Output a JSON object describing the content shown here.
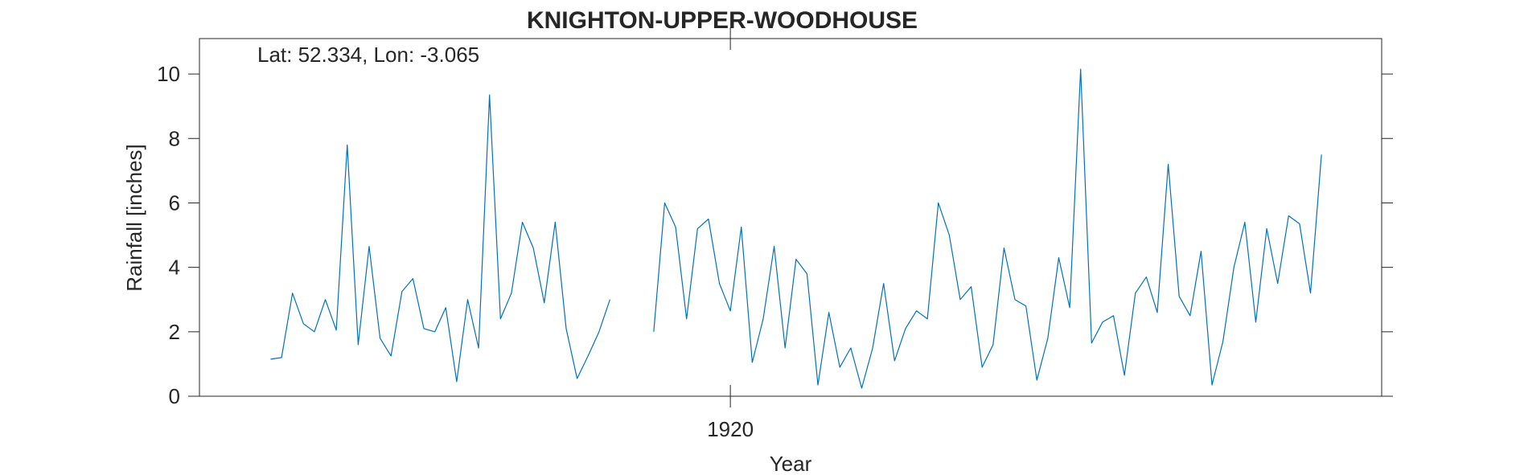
{
  "chart_data": {
    "type": "line",
    "title": "KNIGHTON-UPPER-WOODHOUSE",
    "annotation": "Lat: 52.334, Lon: -3.065",
    "xlabel": "Year",
    "ylabel": "Rainfall [inches]",
    "xlim": [
      1871.5,
      1979.5
    ],
    "ylim": [
      0,
      11.1
    ],
    "xticks": [
      1920
    ],
    "xtick_labels": [
      "1920"
    ],
    "yticks": [
      0,
      2,
      4,
      6,
      8,
      10
    ],
    "ytick_labels": [
      "0",
      "2",
      "4",
      "6",
      "8",
      "10"
    ],
    "grid": false,
    "line_color": "#0072BD",
    "axis_color": "#262626",
    "series": [
      {
        "segments": [
          {
            "x": [
              1878,
              1879,
              1880,
              1881,
              1882,
              1883,
              1884,
              1885,
              1886,
              1887,
              1888,
              1889,
              1890,
              1891,
              1892,
              1893,
              1894,
              1895,
              1896,
              1897,
              1898,
              1899,
              1900,
              1901,
              1902,
              1903,
              1904,
              1905,
              1906,
              1907,
              1908,
              1909,
              1910
            ],
            "y": [
              1.15,
              1.2,
              3.2,
              2.25,
              2.0,
              3.0,
              2.05,
              7.8,
              1.6,
              4.65,
              1.8,
              1.25,
              3.25,
              3.65,
              2.1,
              2.0,
              2.75,
              0.45,
              3.0,
              1.5,
              9.35,
              2.4,
              3.2,
              5.4,
              4.6,
              2.9,
              5.4,
              2.1,
              0.55,
              1.25,
              2.0,
              3.0,
              null
            ]
          },
          {
            "x": [
              1913,
              1914,
              1915,
              1916,
              1917,
              1918,
              1919,
              1920,
              1921,
              1922,
              1923,
              1924,
              1925,
              1926,
              1927,
              1928,
              1929,
              1930,
              1931,
              1932,
              1933,
              1934,
              1935,
              1936,
              1937,
              1938,
              1939,
              1940,
              1941,
              1942,
              1943,
              1944,
              1945,
              1946,
              1947,
              1948,
              1949,
              1950,
              1951,
              1952,
              1953,
              1954,
              1955,
              1956,
              1957,
              1958,
              1959,
              1960,
              1961,
              1962,
              1963,
              1964,
              1965,
              1966,
              1967,
              1968,
              1969,
              1970,
              1971,
              1972,
              1973,
              1974,
              1975,
              1976
            ],
            "y": [
              2.0,
              6.0,
              5.25,
              2.4,
              5.2,
              5.5,
              3.5,
              2.65,
              5.25,
              1.05,
              2.4,
              4.65,
              1.5,
              4.25,
              3.8,
              0.35,
              2.6,
              0.9,
              1.5,
              0.25,
              1.5,
              3.5,
              1.1,
              2.1,
              2.65,
              2.4,
              6.0,
              5.0,
              3.0,
              3.4,
              0.9,
              1.6,
              4.6,
              3.0,
              2.8,
              0.5,
              1.8,
              4.3,
              2.75,
              10.15,
              1.65,
              2.3,
              2.5,
              0.65,
              3.2,
              3.7,
              2.6,
              7.2,
              3.1,
              2.5,
              4.5,
              0.35,
              1.7,
              4.0,
              5.4,
              2.3,
              5.2,
              3.5,
              5.6,
              5.35,
              3.2,
              7.5,
              null,
              null
            ]
          }
        ]
      }
    ]
  }
}
